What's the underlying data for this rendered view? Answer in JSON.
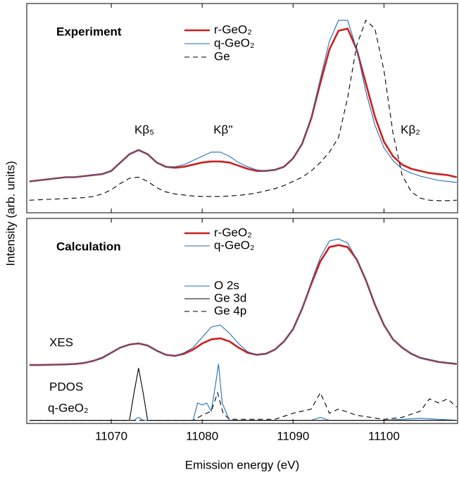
{
  "chart_data": [
    {
      "type": "line",
      "ylabel": "Intensity (arb. units)",
      "xlim": [
        11060.7,
        11108.1
      ],
      "ylim": [
        0,
        1
      ],
      "annotations": [
        "Experiment",
        "Kβ₅",
        "Kβ''",
        "Kβ₂"
      ],
      "x": [
        11061,
        11062,
        11063,
        11064,
        11065,
        11066,
        11067,
        11068,
        11069,
        11070,
        11071,
        11072,
        11073,
        11074,
        11075,
        11076,
        11077,
        11078,
        11079,
        11080,
        11081,
        11082,
        11083,
        11084,
        11085,
        11086,
        11087,
        11088,
        11089,
        11090,
        11091,
        11092,
        11093,
        11094,
        11095,
        11096,
        11097,
        11098,
        11099,
        11100,
        11101,
        11102,
        11103,
        11104,
        11105,
        11106,
        11107,
        11108
      ],
      "series": [
        {
          "name": "r-GeO₂",
          "color": "#cc1f1f",
          "values": [
            0.15,
            0.155,
            0.16,
            0.165,
            0.17,
            0.17,
            0.175,
            0.18,
            0.185,
            0.2,
            0.24,
            0.28,
            0.3,
            0.28,
            0.24,
            0.22,
            0.215,
            0.22,
            0.23,
            0.24,
            0.245,
            0.245,
            0.24,
            0.225,
            0.21,
            0.2,
            0.2,
            0.205,
            0.22,
            0.26,
            0.33,
            0.45,
            0.62,
            0.78,
            0.87,
            0.88,
            0.78,
            0.62,
            0.46,
            0.34,
            0.27,
            0.23,
            0.21,
            0.2,
            0.19,
            0.185,
            0.18,
            0.17
          ]
        },
        {
          "name": "q-GeO₂",
          "color": "#1f6fb4",
          "values": [
            0.15,
            0.155,
            0.16,
            0.165,
            0.17,
            0.17,
            0.175,
            0.18,
            0.185,
            0.2,
            0.24,
            0.28,
            0.3,
            0.28,
            0.24,
            0.22,
            0.22,
            0.23,
            0.25,
            0.27,
            0.29,
            0.29,
            0.27,
            0.24,
            0.22,
            0.205,
            0.2,
            0.205,
            0.22,
            0.26,
            0.33,
            0.46,
            0.64,
            0.82,
            0.92,
            0.92,
            0.78,
            0.58,
            0.42,
            0.31,
            0.25,
            0.21,
            0.19,
            0.175,
            0.165,
            0.155,
            0.15,
            0.145
          ]
        },
        {
          "name": "Ge",
          "color": "#000000",
          "dash": true,
          "values": [
            0.06,
            0.062,
            0.064,
            0.066,
            0.068,
            0.07,
            0.072,
            0.078,
            0.09,
            0.11,
            0.14,
            0.165,
            0.17,
            0.15,
            0.12,
            0.1,
            0.09,
            0.085,
            0.08,
            0.078,
            0.078,
            0.078,
            0.08,
            0.083,
            0.088,
            0.095,
            0.105,
            0.115,
            0.13,
            0.15,
            0.17,
            0.2,
            0.24,
            0.29,
            0.36,
            0.55,
            0.8,
            0.92,
            0.88,
            0.68,
            0.38,
            0.18,
            0.1,
            0.07,
            0.06,
            0.058,
            0.058,
            0.06
          ]
        }
      ]
    },
    {
      "type": "line",
      "xlabel": "Emission energy (eV)",
      "xlim": [
        11060.7,
        11108.1
      ],
      "ylim": [
        0,
        1
      ],
      "xticks": [
        11070,
        11080,
        11090,
        11100
      ],
      "annotations": [
        "Calculation",
        "XES",
        "PDOS",
        "q-GeO₂"
      ],
      "x": [
        11061,
        11062,
        11063,
        11064,
        11065,
        11066,
        11067,
        11068,
        11069,
        11070,
        11071,
        11072,
        11073,
        11074,
        11075,
        11076,
        11077,
        11078,
        11079,
        11080,
        11081,
        11082,
        11083,
        11084,
        11085,
        11086,
        11087,
        11088,
        11089,
        11090,
        11091,
        11092,
        11093,
        11094,
        11095,
        11096,
        11097,
        11098,
        11099,
        11100,
        11101,
        11102,
        11103,
        11104,
        11105,
        11106,
        11107,
        11108
      ],
      "series": [
        {
          "name": "r-GeO₂",
          "color": "#cc1f1f",
          "values": [
            0.285,
            0.285,
            0.286,
            0.287,
            0.288,
            0.29,
            0.295,
            0.305,
            0.32,
            0.345,
            0.37,
            0.385,
            0.39,
            0.38,
            0.355,
            0.335,
            0.33,
            0.34,
            0.36,
            0.39,
            0.41,
            0.415,
            0.4,
            0.37,
            0.345,
            0.335,
            0.34,
            0.36,
            0.4,
            0.46,
            0.56,
            0.68,
            0.79,
            0.86,
            0.87,
            0.86,
            0.8,
            0.7,
            0.58,
            0.48,
            0.41,
            0.37,
            0.34,
            0.32,
            0.31,
            0.3,
            0.295,
            0.29
          ]
        },
        {
          "name": "q-GeO₂",
          "color": "#1f6fb4",
          "values": [
            0.285,
            0.285,
            0.286,
            0.287,
            0.288,
            0.29,
            0.295,
            0.305,
            0.32,
            0.345,
            0.37,
            0.385,
            0.39,
            0.38,
            0.355,
            0.335,
            0.33,
            0.345,
            0.37,
            0.42,
            0.47,
            0.48,
            0.44,
            0.39,
            0.35,
            0.335,
            0.34,
            0.36,
            0.4,
            0.46,
            0.56,
            0.69,
            0.81,
            0.89,
            0.9,
            0.88,
            0.8,
            0.7,
            0.58,
            0.48,
            0.41,
            0.37,
            0.34,
            0.32,
            0.31,
            0.3,
            0.295,
            0.29
          ]
        },
        {
          "name": "O 2s",
          "color": "#1f6fb4",
          "x": [
            11061,
            11072.5,
            11073,
            11073.5,
            11079,
            11079.5,
            11080,
            11080.5,
            11081,
            11081.5,
            11081.8,
            11082.2,
            11083,
            11092,
            11093,
            11094,
            11100,
            11104,
            11106,
            11108
          ],
          "values": [
            0.015,
            0.015,
            0.03,
            0.015,
            0.015,
            0.1,
            0.09,
            0.1,
            0.06,
            0.2,
            0.29,
            0.1,
            0.015,
            0.015,
            0.03,
            0.015,
            0.015,
            0.025,
            0.02,
            0.015
          ]
        },
        {
          "name": "Ge 3d",
          "color": "#000000",
          "x": [
            11061,
            11072,
            11072.5,
            11073,
            11073.5,
            11074,
            11108
          ],
          "values": [
            0.015,
            0.015,
            0.15,
            0.27,
            0.15,
            0.015,
            0.015
          ]
        },
        {
          "name": "Ge 4p",
          "color": "#000000",
          "dash": true,
          "x": [
            11061,
            11079,
            11080,
            11081,
            11081.7,
            11082.3,
            11083,
            11088,
            11090,
            11092,
            11093,
            11094,
            11095,
            11097,
            11100,
            11102,
            11104,
            11105,
            11106,
            11107,
            11108
          ],
          "values": [
            0.015,
            0.015,
            0.04,
            0.06,
            0.15,
            0.05,
            0.02,
            0.02,
            0.05,
            0.07,
            0.15,
            0.05,
            0.07,
            0.04,
            0.02,
            0.03,
            0.06,
            0.12,
            0.1,
            0.12,
            0.08
          ]
        }
      ]
    }
  ]
}
